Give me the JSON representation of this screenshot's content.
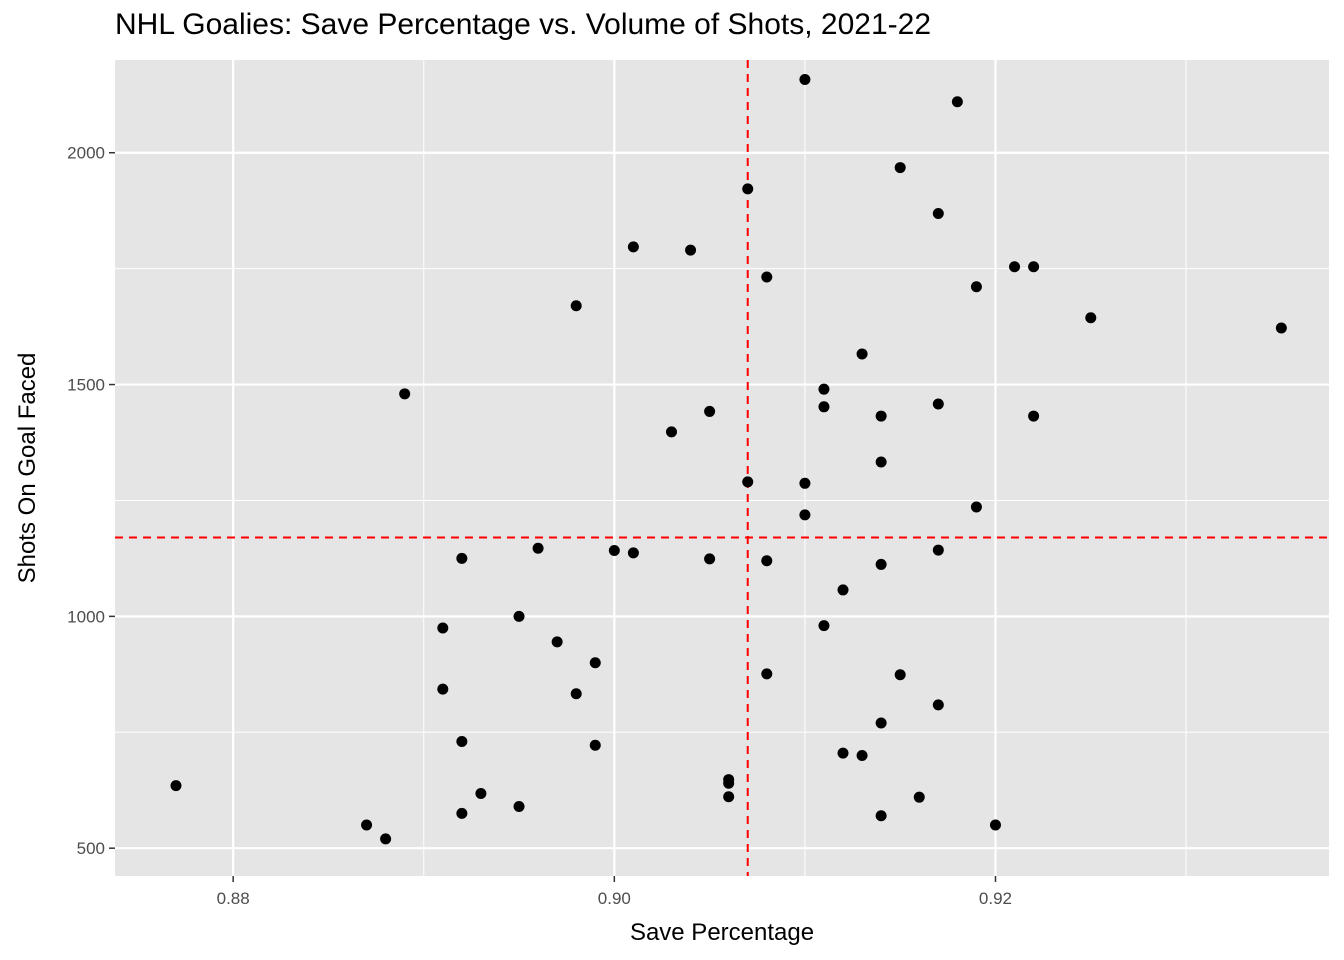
{
  "chart_data": {
    "type": "scatter",
    "title": "NHL Goalies: Save Percentage vs. Volume of Shots, 2021-22",
    "xlabel": "Save Percentage",
    "ylabel": "Shots On Goal Faced",
    "xlim": [
      0.8738,
      0.9375
    ],
    "ylim": [
      440,
      2200
    ],
    "x_ticks": [
      0.88,
      0.9,
      0.92
    ],
    "x_tick_labels": [
      "0.88",
      "0.90",
      "0.92"
    ],
    "y_ticks": [
      500,
      1000,
      1500,
      2000
    ],
    "y_tick_labels": [
      "500",
      "1000",
      "1500",
      "2000"
    ],
    "grid": true,
    "legend": "none",
    "reference_lines": {
      "x": 0.907,
      "y": 1170,
      "color": "#ff0000",
      "style": "dashed"
    },
    "colors": {
      "panel": "#e5e5e5",
      "grid": "#ffffff",
      "point": "#000000"
    },
    "points": [
      {
        "x": 0.877,
        "y": 635
      },
      {
        "x": 0.887,
        "y": 550
      },
      {
        "x": 0.888,
        "y": 520
      },
      {
        "x": 0.889,
        "y": 1480
      },
      {
        "x": 0.891,
        "y": 975
      },
      {
        "x": 0.891,
        "y": 843
      },
      {
        "x": 0.892,
        "y": 1125
      },
      {
        "x": 0.892,
        "y": 730
      },
      {
        "x": 0.892,
        "y": 575
      },
      {
        "x": 0.893,
        "y": 618
      },
      {
        "x": 0.895,
        "y": 1000
      },
      {
        "x": 0.895,
        "y": 590
      },
      {
        "x": 0.896,
        "y": 1147
      },
      {
        "x": 0.897,
        "y": 945
      },
      {
        "x": 0.898,
        "y": 1670
      },
      {
        "x": 0.898,
        "y": 833
      },
      {
        "x": 0.899,
        "y": 900
      },
      {
        "x": 0.899,
        "y": 722
      },
      {
        "x": 0.9,
        "y": 1142
      },
      {
        "x": 0.901,
        "y": 1797
      },
      {
        "x": 0.901,
        "y": 1137
      },
      {
        "x": 0.903,
        "y": 1398
      },
      {
        "x": 0.904,
        "y": 1790
      },
      {
        "x": 0.905,
        "y": 1442
      },
      {
        "x": 0.905,
        "y": 1124
      },
      {
        "x": 0.906,
        "y": 648
      },
      {
        "x": 0.906,
        "y": 640
      },
      {
        "x": 0.906,
        "y": 611
      },
      {
        "x": 0.907,
        "y": 1922
      },
      {
        "x": 0.907,
        "y": 1290
      },
      {
        "x": 0.908,
        "y": 1732
      },
      {
        "x": 0.908,
        "y": 1120
      },
      {
        "x": 0.908,
        "y": 876
      },
      {
        "x": 0.91,
        "y": 2158
      },
      {
        "x": 0.91,
        "y": 1287
      },
      {
        "x": 0.91,
        "y": 1219
      },
      {
        "x": 0.911,
        "y": 1490
      },
      {
        "x": 0.911,
        "y": 1452
      },
      {
        "x": 0.911,
        "y": 980
      },
      {
        "x": 0.912,
        "y": 1057
      },
      {
        "x": 0.912,
        "y": 705
      },
      {
        "x": 0.913,
        "y": 1566
      },
      {
        "x": 0.913,
        "y": 700
      },
      {
        "x": 0.914,
        "y": 1432
      },
      {
        "x": 0.914,
        "y": 1333
      },
      {
        "x": 0.914,
        "y": 1112
      },
      {
        "x": 0.914,
        "y": 770
      },
      {
        "x": 0.914,
        "y": 570
      },
      {
        "x": 0.915,
        "y": 1968
      },
      {
        "x": 0.915,
        "y": 874
      },
      {
        "x": 0.916,
        "y": 610
      },
      {
        "x": 0.917,
        "y": 1869
      },
      {
        "x": 0.917,
        "y": 1458
      },
      {
        "x": 0.917,
        "y": 1143
      },
      {
        "x": 0.917,
        "y": 809
      },
      {
        "x": 0.918,
        "y": 2110
      },
      {
        "x": 0.919,
        "y": 1711
      },
      {
        "x": 0.919,
        "y": 1236
      },
      {
        "x": 0.92,
        "y": 550
      },
      {
        "x": 0.921,
        "y": 1754
      },
      {
        "x": 0.922,
        "y": 1754
      },
      {
        "x": 0.922,
        "y": 1432
      },
      {
        "x": 0.925,
        "y": 1644
      },
      {
        "x": 0.935,
        "y": 1622
      }
    ]
  }
}
